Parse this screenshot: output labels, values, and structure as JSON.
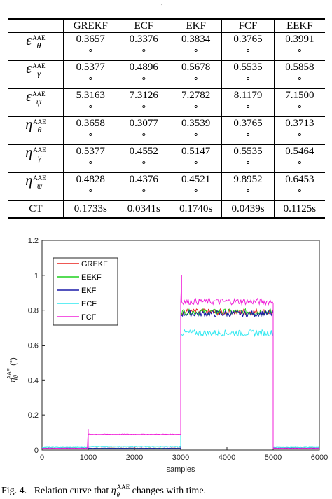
{
  "top_mark": ",",
  "table": {
    "columns": [
      "GREKF",
      "ECF",
      "EKF",
      "FCF",
      "EEKF"
    ],
    "degree_symbol": "∘",
    "rows": [
      {
        "symbol": "ε",
        "sup": "AAE",
        "sub": "θ",
        "values": [
          "0.3657",
          "0.3376",
          "0.3834",
          "0.3765",
          "0.3991"
        ]
      },
      {
        "symbol": "ε",
        "sup": "AAE",
        "sub": "γ",
        "values": [
          "0.5377",
          "0.4896",
          "0.5678",
          "0.5535",
          "0.5858"
        ]
      },
      {
        "symbol": "ε",
        "sup": "AAE",
        "sub": "ψ",
        "values": [
          "5.3163",
          "7.3126",
          "7.2782",
          "8.1179",
          "7.1500"
        ]
      },
      {
        "symbol": "η",
        "sup": "AAE",
        "sub": "θ",
        "values": [
          "0.3658",
          "0.3077",
          "0.3539",
          "0.3765",
          "0.3713"
        ]
      },
      {
        "symbol": "η",
        "sup": "AAE",
        "sub": "γ",
        "values": [
          "0.5377",
          "0.4552",
          "0.5147",
          "0.5535",
          "0.5464"
        ]
      },
      {
        "symbol": "η",
        "sup": "AAE",
        "sub": "ψ",
        "values": [
          "0.4828",
          "0.4376",
          "0.4521",
          "9.8952",
          "0.6453"
        ]
      }
    ],
    "ct_row": {
      "label": "CT",
      "values": [
        "0.1733s",
        "0.0341s",
        "0.1740s",
        "0.0439s",
        "0.1125s"
      ]
    }
  },
  "chart_data": {
    "type": "line",
    "xlabel": "samples",
    "ylabel": "η_θ^AAE (°)",
    "xlim": [
      0,
      6000
    ],
    "ylim": [
      0,
      1.2
    ],
    "xticks": [
      "0",
      "1000",
      "2000",
      "3000",
      "4000",
      "5000",
      "6000"
    ],
    "yticks": [
      "0",
      "0.2",
      "0.4",
      "0.6",
      "0.8",
      "1",
      "1.2"
    ],
    "grid": false,
    "legend_position": "top-left",
    "series": [
      {
        "name": "GREKF",
        "color": "#e8201a",
        "segments": [
          {
            "x": [
              0,
              1000
            ],
            "y": 0.01
          },
          {
            "x": [
              1000,
              3000
            ],
            "y": 0.01
          },
          {
            "x": [
              3000,
              5000
            ],
            "y": 0.79
          },
          {
            "x": [
              5000,
              6000
            ],
            "y": 0.01
          }
        ]
      },
      {
        "name": "EEKF",
        "color": "#1fd01f",
        "segments": [
          {
            "x": [
              0,
              1000
            ],
            "y": 0.01
          },
          {
            "x": [
              1000,
              3000
            ],
            "y": 0.01
          },
          {
            "x": [
              3000,
              5000
            ],
            "y": 0.79
          },
          {
            "x": [
              5000,
              6000
            ],
            "y": 0.01
          }
        ]
      },
      {
        "name": "EKF",
        "color": "#1a1aa8",
        "segments": [
          {
            "x": [
              0,
              1000
            ],
            "y": 0.01
          },
          {
            "x": [
              1000,
              3000
            ],
            "y": 0.01
          },
          {
            "x": [
              3000,
              5000
            ],
            "y": 0.78
          },
          {
            "x": [
              5000,
              6000
            ],
            "y": 0.01
          }
        ]
      },
      {
        "name": "ECF",
        "color": "#2ee8f0",
        "segments": [
          {
            "x": [
              0,
              1000
            ],
            "y": 0.015
          },
          {
            "x": [
              1000,
              3000
            ],
            "y": 0.02
          },
          {
            "x": [
              3000,
              5000
            ],
            "y": 0.67
          },
          {
            "x": [
              5000,
              6000
            ],
            "y": 0.015
          }
        ]
      },
      {
        "name": "FCF",
        "color": "#f020d8",
        "segments": [
          {
            "x": [
              0,
              1000
            ],
            "y": 0.01
          },
          {
            "x": [
              1000,
              3000
            ],
            "y": 0.09
          },
          {
            "x": [
              3000,
              5000
            ],
            "y": 0.85
          },
          {
            "x": [
              5000,
              6000
            ],
            "y": 0.01
          }
        ]
      }
    ],
    "peaks": [
      {
        "series": "FCF",
        "x": 1000,
        "y": 0.12
      },
      {
        "series": "FCF",
        "x": 3020,
        "y": 1.0
      }
    ]
  },
  "caption": {
    "prefix": "Fig. 4.",
    "text_before": "Relation curve that ",
    "symbol": "η",
    "sub": "θ",
    "sup": "AAE",
    "text_after": " changes with time."
  }
}
